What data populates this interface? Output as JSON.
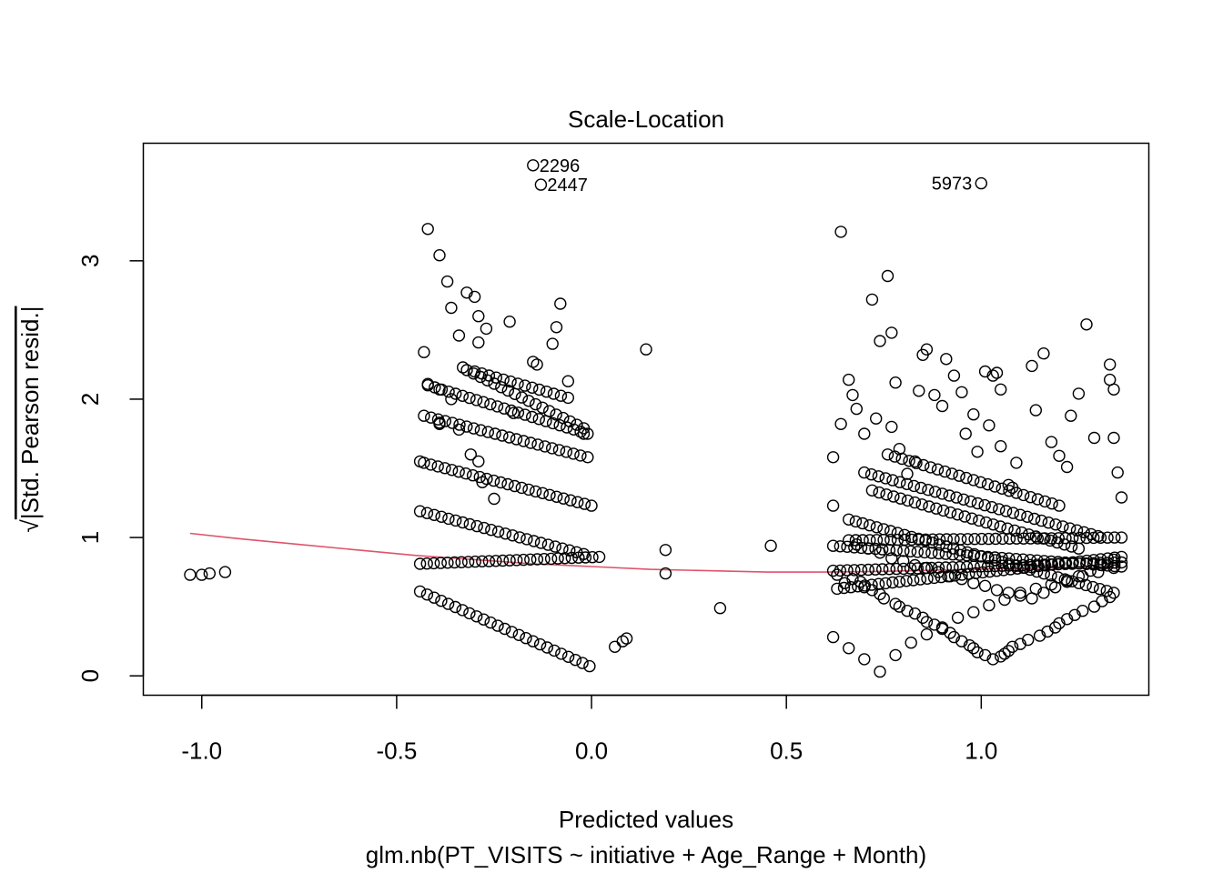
{
  "chart_data": {
    "type": "scatter",
    "title": "Scale-Location",
    "xlabel": "Predicted values",
    "subtitle": "glm.nb(PT_VISITS ~ initiative + Age_Range + Month)",
    "ylabel_radical": "√",
    "ylabel": "|Std. Pearson resid.|",
    "xlim": [
      -1.15,
      1.43
    ],
    "ylim": [
      -0.14,
      3.85
    ],
    "x_ticks": [
      -1.0,
      -0.5,
      0.0,
      0.5,
      1.0
    ],
    "x_tick_labels": [
      "-1.0",
      "-0.5",
      "0.0",
      "0.5",
      "1.0"
    ],
    "y_ticks": [
      0,
      1,
      2,
      3
    ],
    "y_tick_labels": [
      "0",
      "1",
      "2",
      "3"
    ],
    "point_style": "open-circle",
    "point_color": "#000000",
    "smooth_color": "#DF536B",
    "labeled_points": [
      {
        "label": "2296",
        "x": -0.15,
        "y": 3.69,
        "side": "right"
      },
      {
        "label": "2447",
        "x": -0.13,
        "y": 3.55,
        "side": "right"
      },
      {
        "label": "5973",
        "x": 1.0,
        "y": 3.56,
        "side": "left"
      }
    ],
    "points": {
      "x": [
        -1.03,
        -1.0,
        -0.98,
        -0.94,
        -0.42,
        -0.39,
        -0.37,
        -0.36,
        -0.34,
        -0.33,
        -0.32,
        -0.3,
        -0.29,
        -0.29,
        -0.27,
        -0.21,
        -0.08,
        -0.09,
        -0.1,
        -0.06,
        -0.43,
        -0.39,
        -0.36,
        -0.34,
        -0.31,
        -0.29,
        -0.28,
        -0.25,
        -0.2,
        -0.15,
        -0.14,
        -0.02,
        -0.39,
        -0.39,
        -0.42,
        -0.44,
        0.06,
        0.08,
        0.09,
        0.14,
        0.19,
        0.19,
        0.33,
        0.46,
        0.62,
        0.62,
        0.64,
        0.64,
        0.66,
        0.67,
        0.68,
        0.7,
        0.72,
        0.73,
        0.74,
        0.76,
        0.77,
        0.77,
        0.78,
        0.79,
        0.81,
        0.83,
        0.84,
        0.85,
        0.86,
        0.88,
        0.9,
        0.91,
        0.93,
        0.95,
        0.96,
        0.98,
        0.99,
        1.01,
        1.02,
        1.03,
        1.04,
        1.05,
        1.05,
        1.07,
        1.08,
        1.09,
        1.13,
        1.14,
        1.16,
        1.18,
        1.2,
        1.22,
        1.23,
        1.25,
        1.27,
        1.29,
        1.33,
        1.33,
        1.34,
        1.34,
        1.35,
        1.36,
        0.63,
        0.65,
        0.67,
        0.69,
        0.7,
        0.72,
        0.74,
        0.75,
        0.78,
        0.79,
        0.81,
        0.83,
        0.85,
        0.86,
        0.88,
        0.9,
        0.92,
        0.93,
        0.95,
        0.97,
        0.98,
        0.99,
        1.01,
        1.03,
        1.05,
        1.06,
        1.07,
        1.08,
        1.1,
        1.12,
        1.15,
        1.17,
        1.19,
        1.2,
        1.22,
        1.24,
        1.26,
        1.29,
        1.31,
        1.33,
        0.68,
        0.71,
        0.74,
        0.77,
        0.8,
        0.83,
        0.86,
        0.89,
        0.92,
        0.95,
        0.98,
        1.01,
        1.04,
        1.07,
        1.1,
        1.13,
        1.16,
        1.19,
        1.22,
        1.25,
        1.28,
        1.31,
        1.34,
        0.62,
        0.66,
        0.7,
        0.74,
        0.78,
        0.82,
        0.86,
        0.9,
        0.94,
        0.98,
        1.02,
        1.06,
        1.1,
        1.14,
        1.18,
        1.22,
        1.26,
        1.3,
        1.34
      ],
      "y": [
        0.73,
        0.73,
        0.74,
        0.75,
        3.23,
        3.04,
        2.85,
        2.66,
        2.46,
        2.23,
        2.77,
        2.74,
        2.6,
        2.41,
        2.51,
        2.56,
        2.69,
        2.52,
        2.4,
        2.13,
        2.34,
        2.07,
        2.0,
        1.78,
        1.6,
        1.55,
        1.4,
        1.28,
        1.9,
        2.27,
        2.25,
        1.75,
        1.83,
        1.82,
        2.11,
        1.55,
        0.21,
        0.25,
        0.27,
        2.36,
        0.91,
        0.74,
        0.49,
        0.94,
        1.58,
        1.23,
        3.21,
        1.82,
        2.14,
        2.03,
        1.93,
        1.75,
        2.72,
        1.86,
        2.42,
        2.89,
        2.48,
        1.8,
        2.12,
        1.64,
        1.46,
        1.55,
        2.06,
        2.32,
        2.36,
        2.03,
        1.95,
        2.29,
        2.17,
        2.05,
        1.75,
        1.89,
        1.62,
        2.2,
        1.81,
        2.17,
        2.19,
        2.07,
        1.66,
        1.38,
        1.36,
        1.54,
        2.24,
        1.92,
        2.33,
        1.69,
        1.59,
        1.51,
        1.88,
        2.04,
        2.54,
        1.72,
        2.25,
        2.14,
        2.07,
        1.72,
        1.47,
        1.29,
        0.73,
        0.67,
        0.7,
        0.68,
        0.64,
        0.62,
        0.59,
        0.56,
        0.52,
        0.5,
        0.47,
        0.45,
        0.42,
        0.39,
        0.37,
        0.34,
        0.31,
        0.28,
        0.25,
        0.22,
        0.2,
        0.17,
        0.15,
        0.12,
        0.14,
        0.16,
        0.18,
        0.21,
        0.23,
        0.26,
        0.29,
        0.32,
        0.35,
        0.38,
        0.41,
        0.44,
        0.47,
        0.5,
        0.54,
        0.57,
        0.95,
        0.92,
        0.89,
        0.85,
        0.83,
        0.8,
        0.78,
        0.75,
        0.72,
        0.7,
        0.67,
        0.65,
        0.62,
        0.6,
        0.58,
        0.56,
        0.6,
        0.64,
        0.68,
        0.72,
        0.76,
        0.8,
        0.84,
        0.28,
        0.2,
        0.12,
        0.03,
        0.15,
        0.24,
        0.3,
        0.35,
        0.42,
        0.46,
        0.51,
        0.55,
        0.6,
        0.63,
        0.66,
        0.69,
        0.72,
        0.75,
        0.78
      ]
    },
    "point_bands": [
      {
        "x": [
          -0.44,
          -0.02
        ],
        "y": [
          1.19,
          0.88
        ]
      },
      {
        "x": [
          -0.44,
          0.02
        ],
        "y": [
          0.81,
          0.86
        ]
      },
      {
        "x": [
          -0.44,
          -0.005
        ],
        "y": [
          0.61,
          0.07
        ]
      },
      {
        "x": [
          -0.43,
          0.0
        ],
        "y": [
          1.54,
          1.23
        ]
      },
      {
        "x": [
          -0.43,
          -0.01
        ],
        "y": [
          1.88,
          1.58
        ]
      },
      {
        "x": [
          -0.42,
          -0.01
        ],
        "y": [
          2.1,
          1.75
        ]
      },
      {
        "x": [
          -0.32,
          -0.02
        ],
        "y": [
          2.21,
          1.79
        ]
      },
      {
        "x": [
          -0.3,
          -0.06
        ],
        "y": [
          2.2,
          2.01
        ]
      },
      {
        "x": [
          0.62,
          1.36
        ],
        "y": [
          0.94,
          0.79
        ]
      },
      {
        "x": [
          0.62,
          1.36
        ],
        "y": [
          0.76,
          0.82
        ]
      },
      {
        "x": [
          0.63,
          1.36
        ],
        "y": [
          0.63,
          0.86
        ]
      },
      {
        "x": [
          0.66,
          1.36
        ],
        "y": [
          0.98,
          1.0
        ]
      },
      {
        "x": [
          0.66,
          1.34
        ],
        "y": [
          1.13,
          0.6
        ]
      },
      {
        "x": [
          0.7,
          1.3
        ],
        "y": [
          1.47,
          1.01
        ]
      },
      {
        "x": [
          0.72,
          1.25
        ],
        "y": [
          1.34,
          0.92
        ]
      },
      {
        "x": [
          0.76,
          1.2
        ],
        "y": [
          1.6,
          1.23
        ]
      }
    ],
    "smooth_line": {
      "x": [
        -1.03,
        -0.9,
        -0.75,
        -0.6,
        -0.45,
        -0.3,
        -0.15,
        0.0,
        0.15,
        0.3,
        0.45,
        0.6,
        0.75,
        0.9,
        1.05,
        1.2,
        1.36
      ],
      "y": [
        1.03,
        0.99,
        0.95,
        0.91,
        0.87,
        0.84,
        0.81,
        0.79,
        0.77,
        0.76,
        0.75,
        0.75,
        0.755,
        0.765,
        0.775,
        0.78,
        0.78
      ]
    }
  }
}
